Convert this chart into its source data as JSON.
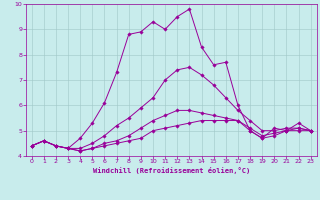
{
  "xlabel": "Windchill (Refroidissement éolien,°C)",
  "background_color": "#c8ecec",
  "line_color": "#990099",
  "grid_color": "#a0c8c8",
  "x": [
    0,
    1,
    2,
    3,
    4,
    5,
    6,
    7,
    8,
    9,
    10,
    11,
    12,
    13,
    14,
    15,
    16,
    17,
    18,
    19,
    20,
    21,
    22,
    23
  ],
  "lines": [
    [
      4.4,
      4.6,
      4.4,
      4.3,
      4.2,
      4.3,
      4.4,
      4.5,
      4.6,
      4.7,
      5.0,
      5.1,
      5.2,
      5.3,
      5.4,
      5.4,
      5.4,
      5.4,
      5.0,
      4.7,
      4.8,
      5.0,
      5.0,
      5.0
    ],
    [
      4.4,
      4.6,
      4.4,
      4.3,
      4.2,
      4.3,
      4.5,
      4.6,
      4.8,
      5.1,
      5.4,
      5.6,
      5.8,
      5.8,
      5.7,
      5.6,
      5.5,
      5.4,
      5.1,
      4.8,
      4.9,
      5.0,
      5.1,
      5.0
    ],
    [
      4.4,
      4.6,
      4.4,
      4.3,
      4.3,
      4.5,
      4.8,
      5.2,
      5.5,
      5.9,
      6.3,
      7.0,
      7.4,
      7.5,
      7.2,
      6.8,
      6.3,
      5.8,
      5.4,
      5.0,
      5.0,
      5.1,
      5.1,
      5.0
    ],
    [
      4.4,
      4.6,
      4.4,
      4.3,
      4.7,
      5.3,
      6.1,
      7.3,
      8.8,
      8.9,
      9.3,
      9.0,
      9.5,
      9.8,
      8.3,
      7.6,
      7.7,
      6.0,
      5.0,
      4.7,
      5.1,
      5.0,
      5.3,
      5.0
    ]
  ],
  "xlim": [
    -0.5,
    23.5
  ],
  "ylim": [
    4,
    10
  ],
  "yticks": [
    4,
    5,
    6,
    7,
    8,
    9,
    10
  ],
  "xticks": [
    0,
    1,
    2,
    3,
    4,
    5,
    6,
    7,
    8,
    9,
    10,
    11,
    12,
    13,
    14,
    15,
    16,
    17,
    18,
    19,
    20,
    21,
    22,
    23
  ],
  "tick_fontsize": 4.5,
  "xlabel_fontsize": 5.0,
  "marker": "D",
  "markersize": 1.8,
  "linewidth": 0.7
}
